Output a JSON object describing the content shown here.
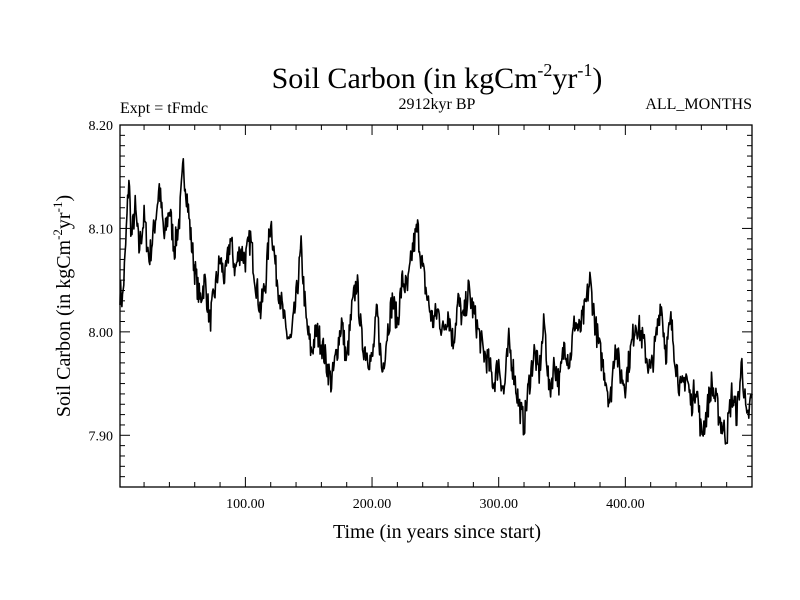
{
  "chart_data": {
    "type": "line",
    "title": {
      "main": "Soil Carbon (in kgCm",
      "exp1": "-2",
      "mid": "yr",
      "exp2": "-1",
      "end": ")"
    },
    "subtitle_left": "Expt = tFmdc",
    "subtitle_center": "2912kyr BP",
    "subtitle_right": "ALL_MONTHS",
    "xlabel": "Time (in years since start)",
    "ylabel": {
      "main": "Soil Carbon (in kgCm",
      "exp1": "-2",
      "mid": "yr",
      "exp2": "-1",
      "end": ")"
    },
    "xlim": [
      1,
      500
    ],
    "ylim": [
      7.85,
      8.2
    ],
    "xticks": [
      100,
      200,
      300,
      400
    ],
    "xtick_labels": [
      "100.00",
      "200.00",
      "300.00",
      "400.00"
    ],
    "yticks": [
      7.9,
      8.0,
      8.1,
      8.2
    ],
    "ytick_labels": [
      "7.90",
      "8.00",
      "8.10",
      "8.20"
    ],
    "series": [
      {
        "name": "Soil Carbon",
        "x": [
          1,
          3,
          5,
          8,
          10,
          13,
          16,
          20,
          24,
          28,
          32,
          36,
          40,
          44,
          48,
          51,
          54,
          57,
          60,
          64,
          68,
          72,
          76,
          80,
          84,
          88,
          92,
          96,
          100,
          104,
          108,
          112,
          116,
          120,
          124,
          128,
          132,
          136,
          140,
          144,
          148,
          152,
          156,
          160,
          164,
          168,
          172,
          176,
          180,
          184,
          188,
          192,
          196,
          200,
          204,
          208,
          212,
          216,
          220,
          224,
          228,
          232,
          236,
          240,
          244,
          248,
          252,
          256,
          260,
          264,
          268,
          272,
          276,
          280,
          284,
          288,
          292,
          296,
          300,
          304,
          308,
          312,
          316,
          320,
          324,
          328,
          332,
          336,
          340,
          344,
          348,
          352,
          356,
          360,
          364,
          368,
          372,
          376,
          380,
          384,
          388,
          392,
          396,
          400,
          404,
          408,
          412,
          416,
          420,
          424,
          428,
          432,
          436,
          440,
          444,
          448,
          452,
          456,
          460,
          464,
          468,
          472,
          476,
          480,
          484,
          488,
          492,
          496,
          500
        ],
        "values": [
          8.04,
          8.03,
          8.07,
          8.15,
          8.09,
          8.12,
          8.08,
          8.11,
          8.07,
          8.1,
          8.14,
          8.09,
          8.12,
          8.08,
          8.11,
          8.16,
          8.13,
          8.09,
          8.06,
          8.03,
          8.05,
          8.01,
          8.04,
          8.07,
          8.05,
          8.09,
          8.06,
          8.08,
          8.07,
          8.09,
          8.05,
          8.02,
          8.05,
          8.11,
          8.06,
          8.03,
          8.0,
          7.99,
          8.03,
          8.08,
          8.01,
          7.98,
          8.0,
          7.99,
          7.97,
          7.95,
          7.98,
          8.01,
          7.97,
          8.02,
          8.05,
          7.99,
          7.98,
          7.97,
          8.02,
          7.96,
          8.0,
          8.03,
          8.01,
          8.05,
          8.04,
          8.08,
          8.1,
          8.06,
          8.03,
          8.01,
          8.02,
          8.0,
          8.02,
          7.99,
          8.03,
          8.01,
          8.04,
          8.02,
          8.0,
          7.98,
          7.97,
          7.95,
          7.97,
          7.94,
          7.99,
          7.96,
          7.93,
          7.91,
          7.95,
          7.98,
          7.96,
          8.01,
          7.94,
          7.97,
          7.95,
          7.99,
          7.97,
          8.01,
          8.0,
          8.02,
          8.05,
          8.01,
          7.98,
          7.96,
          7.93,
          7.99,
          7.96,
          7.95,
          7.98,
          8.01,
          8.0,
          7.98,
          7.96,
          7.99,
          8.03,
          7.98,
          8.01,
          7.97,
          7.94,
          7.96,
          7.93,
          7.95,
          7.9,
          7.92,
          7.95,
          7.93,
          7.91,
          7.9,
          7.94,
          7.92,
          7.97,
          7.91,
          7.94
        ]
      }
    ]
  }
}
